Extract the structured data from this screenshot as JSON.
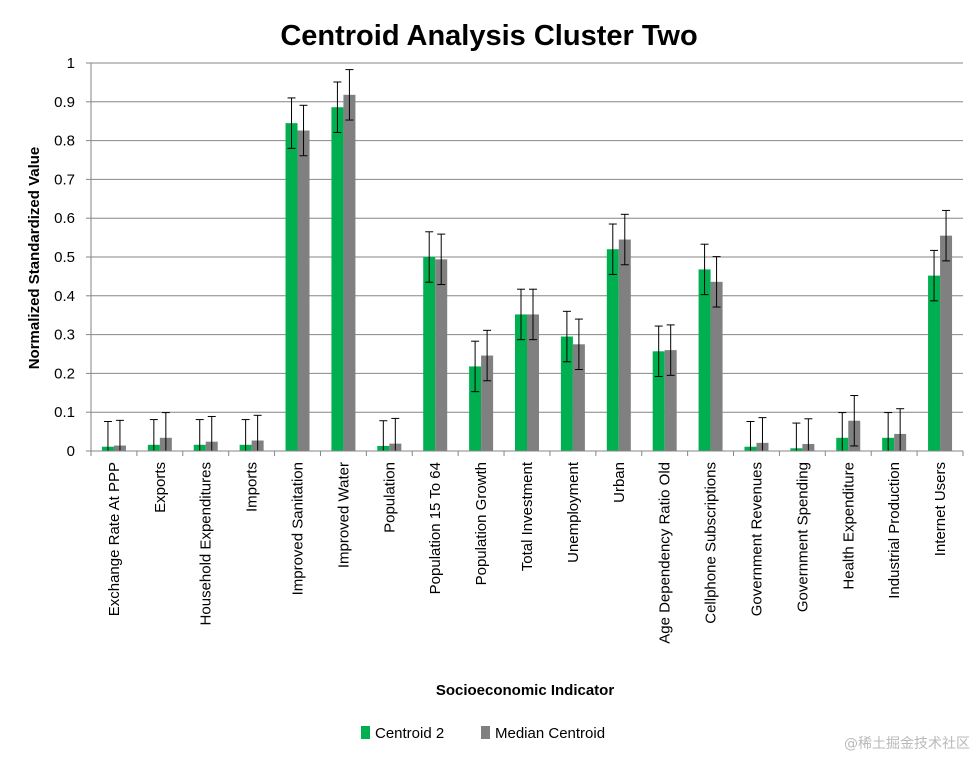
{
  "chart_data": {
    "type": "bar",
    "title": "Centroid Analysis Cluster Two",
    "xlabel": "Socioeconomic Indicator",
    "ylabel": "Normalized Standardized Value",
    "ylim": [
      0,
      1
    ],
    "yticks": [
      "0",
      "0.1",
      "0.2",
      "0.3",
      "0.4",
      "0.5",
      "0.6",
      "0.7",
      "0.8",
      "0.9",
      "1"
    ],
    "grid": true,
    "legend_position": "bottom",
    "categories": [
      "Exchange Rate At PPP",
      "Exports",
      "Household Expenditures",
      "Imports",
      "Improved Sanitation",
      "Improved Water",
      "Population",
      "Population 15 To 64",
      "Population Growth",
      "Total Investment",
      "Unemployment",
      "Urban",
      "Age Dependency Ratio Old",
      "Cellphone Subscriptions",
      "Government Revenues",
      "Government Spending",
      "Health Expenditure",
      "Industrial Production",
      "Internet Users"
    ],
    "series": [
      {
        "name": "Centroid 2",
        "color": "#00b050",
        "values": [
          0.011,
          0.016,
          0.016,
          0.016,
          0.845,
          0.886,
          0.013,
          0.5,
          0.218,
          0.352,
          0.295,
          0.52,
          0.257,
          0.468,
          0.011,
          0.007,
          0.034,
          0.034,
          0.452
        ],
        "error": [
          0.065,
          0.065,
          0.065,
          0.065,
          0.065,
          0.065,
          0.065,
          0.065,
          0.065,
          0.065,
          0.065,
          0.065,
          0.065,
          0.065,
          0.065,
          0.065,
          0.065,
          0.065,
          0.065
        ]
      },
      {
        "name": "Median Centroid",
        "color": "#808080",
        "values": [
          0.014,
          0.034,
          0.024,
          0.027,
          0.826,
          0.918,
          0.019,
          0.494,
          0.246,
          0.352,
          0.275,
          0.545,
          0.26,
          0.436,
          0.021,
          0.018,
          0.078,
          0.044,
          0.555
        ],
        "error": [
          0.065,
          0.065,
          0.065,
          0.065,
          0.065,
          0.065,
          0.065,
          0.065,
          0.065,
          0.065,
          0.065,
          0.065,
          0.065,
          0.065,
          0.065,
          0.065,
          0.065,
          0.065,
          0.065
        ]
      }
    ]
  },
  "watermark": "@稀土掘金技术社区",
  "colors": {
    "grid": "#868686",
    "axis": "#868686",
    "errorbar": "#000000"
  }
}
